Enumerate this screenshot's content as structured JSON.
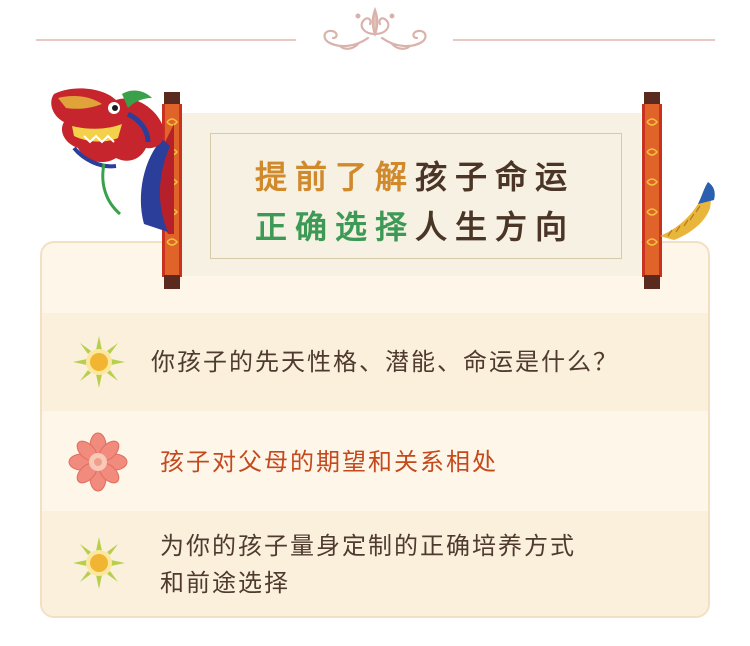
{
  "banner": {
    "line1_highlight": "提前了解",
    "line1_rest": "孩子命运",
    "line2_highlight": "正确选择",
    "line2_rest": "人生方向"
  },
  "items": [
    {
      "icon": "sun-flower-icon",
      "text": "你孩子的先天性格、潜能、命运是什么？"
    },
    {
      "icon": "lotus-flower-icon",
      "text": "孩子对父母的期望和关系相处"
    },
    {
      "icon": "sun-flower-icon",
      "text_line1": "为你的孩子量身定制的正确培养方式",
      "text_line2": "和前途选择"
    }
  ],
  "colors": {
    "highlight_gold": "#d08a2c",
    "highlight_green": "#3d9a56",
    "item_text": "#4e3a2e",
    "item_accent": "#c44a1e"
  }
}
